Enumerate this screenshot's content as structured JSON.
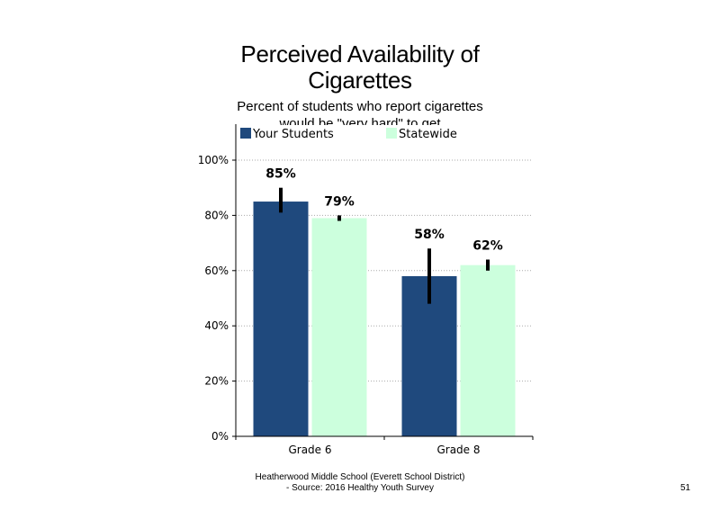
{
  "chart_data": {
    "type": "bar",
    "title_line1": "Perceived Availability of",
    "title_line2": "Cigarettes",
    "subtitle_line1": "Percent of students who report cigarettes",
    "subtitle_line2": "would be \"very hard\" to get",
    "categories": [
      "Grade 6",
      "Grade 8"
    ],
    "series": [
      {
        "name": "Your Students",
        "values": [
          85,
          58
        ],
        "labels": [
          "85%",
          "58%"
        ],
        "error_low": [
          81,
          48
        ],
        "error_high": [
          90,
          68
        ],
        "color": "#1f497d"
      },
      {
        "name": "Statewide",
        "values": [
          79,
          62
        ],
        "labels": [
          "79%",
          "62%"
        ],
        "error_low": [
          78,
          60
        ],
        "error_high": [
          80,
          64
        ],
        "color": "#ccffdd"
      }
    ],
    "ylim": [
      0,
      100
    ],
    "yticks": [
      0,
      20,
      40,
      60,
      80,
      100
    ],
    "ytick_labels": [
      "0%",
      "20%",
      "40%",
      "60%",
      "80%",
      "100%"
    ],
    "grid": true,
    "legend_position": "top"
  },
  "footer": {
    "line1": "Heatherwood Middle School (Everett School District)",
    "line2": "- Source: 2016 Healthy  Youth Survey"
  },
  "page_number": "51"
}
